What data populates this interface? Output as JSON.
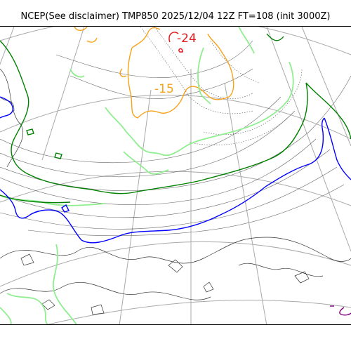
{
  "title": "NCEP(See disclaimer) TMP850 2025/12/04 12Z FT=108 (init 3000Z)",
  "labels": {
    "minus24": "-24",
    "minus15": "-15"
  },
  "colors": {
    "grid": "#a9a9a9",
    "coast": "#000000",
    "minus24": "#e41a1c",
    "minus15": "#f7a21b",
    "minus6": "#90ee90",
    "minus3": "#008000",
    "zero": "#0000ff",
    "plus": "#800080"
  }
}
